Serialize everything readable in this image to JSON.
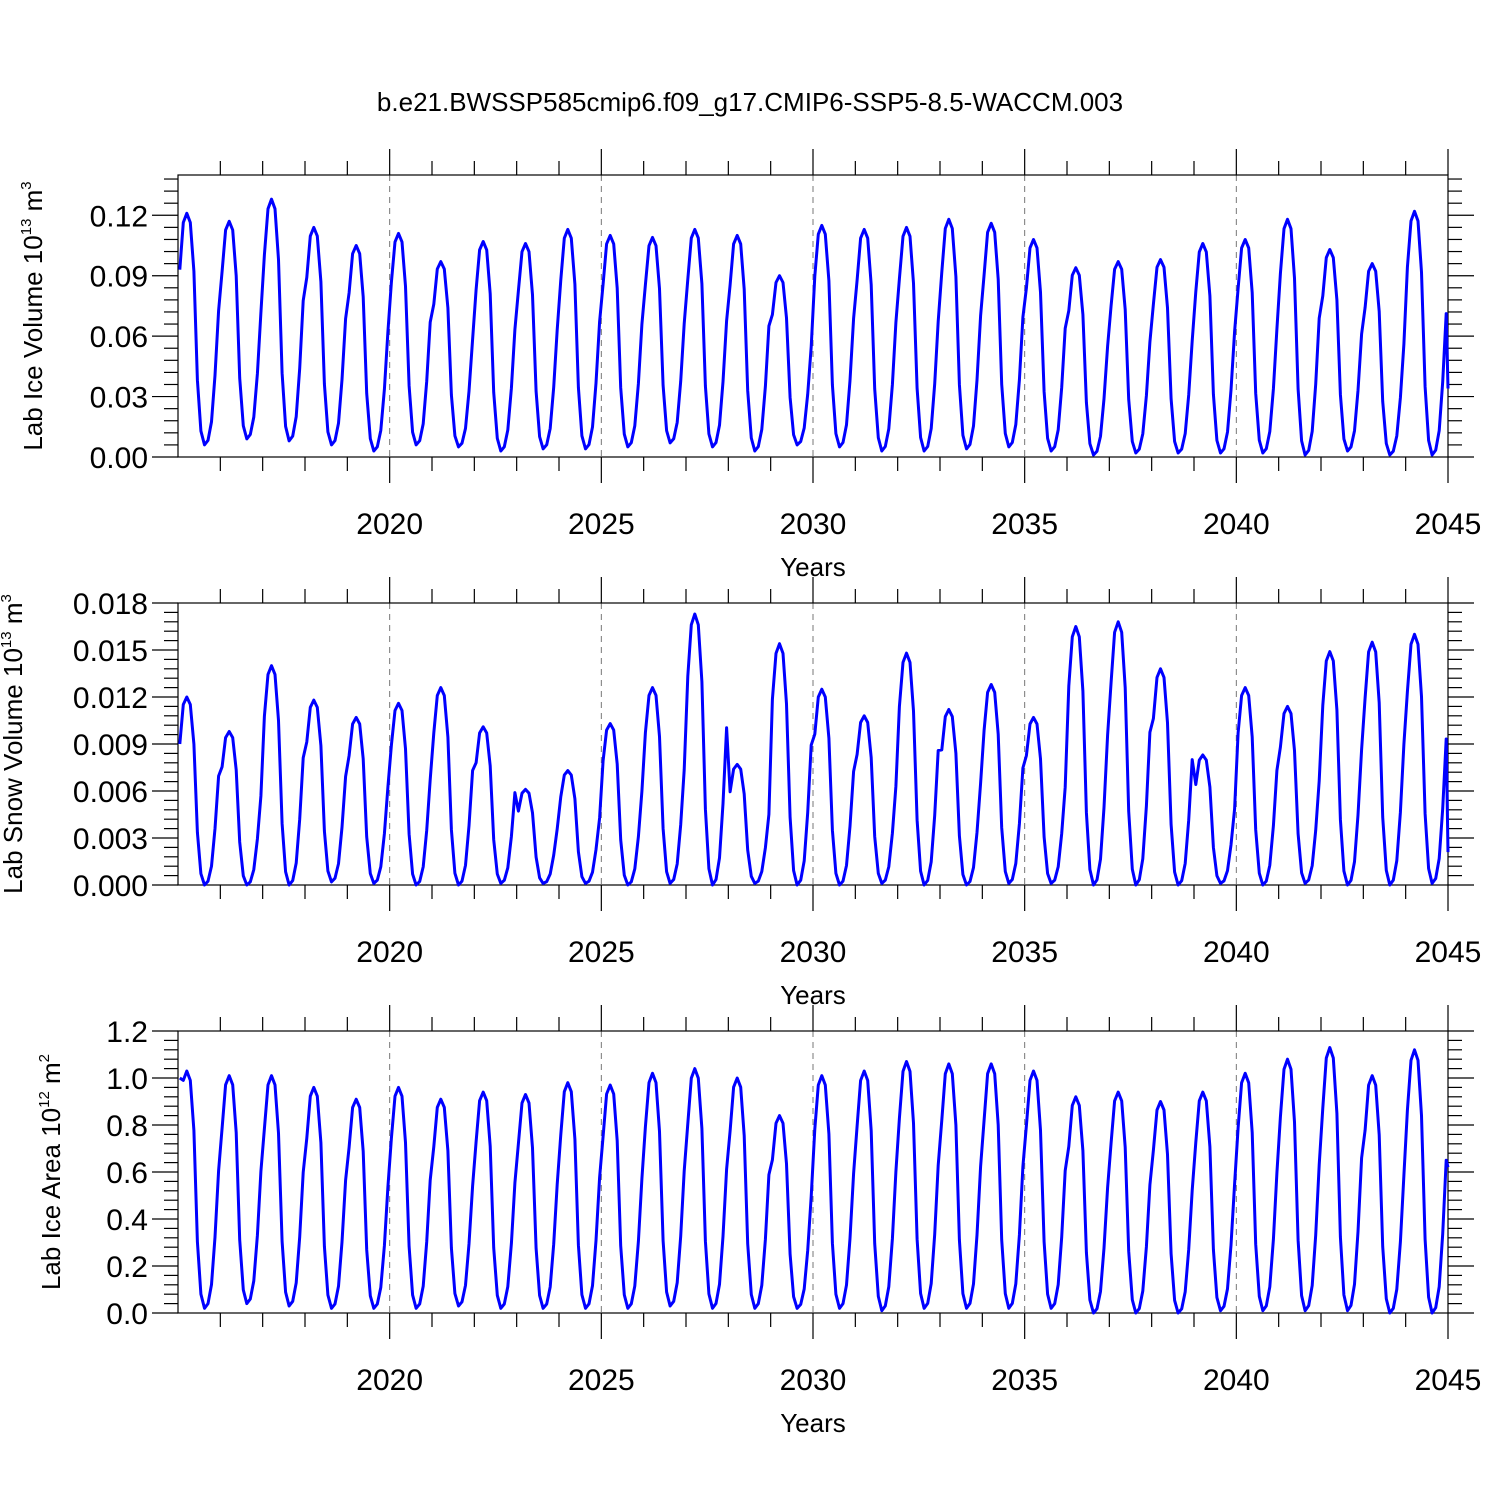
{
  "page_title": "b.e21.BWSSP585cmip6.f09_g17.CMIP6-SSP5-8.5-WACCM.003",
  "colors": {
    "series": "#0000ff",
    "grid": "#777777",
    "axes": "#000000"
  },
  "chart_data": [
    {
      "type": "line",
      "name": "lab-ice-volume",
      "title": "b.e21.BWSSP585cmip6.f09_g17.CMIP6-SSP5-8.5-WACCM.003",
      "xlabel": "Years",
      "ylabel": "Lab Ice Volume 10",
      "ylabel_exponent": "13",
      "ylabel_unit": " m",
      "ylabel_unit_exponent": "3",
      "xlim": [
        2015,
        2045
      ],
      "ylim": [
        0,
        0.14
      ],
      "yticks": [
        "0.00",
        "0.03",
        "0.06",
        "0.09",
        "0.12"
      ],
      "xticks": [
        "2020",
        "2025",
        "2030",
        "2035",
        "2040",
        "2045"
      ],
      "grid": "vertical dashed at 2020, 2025, 2030, 2035, 2040",
      "series": [
        {
          "seasonal_pattern": "monthly values, yearly peak in spring, minimum in late summer",
          "years": [
            2015,
            2016,
            2017,
            2018,
            2019,
            2020,
            2021,
            2022,
            2023,
            2024,
            2025,
            2026,
            2027,
            2028,
            2029,
            2030,
            2031,
            2032,
            2033,
            2034,
            2035,
            2036,
            2037,
            2038,
            2039,
            2040,
            2041,
            2042,
            2043,
            2044
          ],
          "annual_max": [
            0.121,
            0.117,
            0.128,
            0.114,
            0.105,
            0.111,
            0.097,
            0.107,
            0.106,
            0.113,
            0.11,
            0.109,
            0.113,
            0.11,
            0.09,
            0.115,
            0.113,
            0.114,
            0.118,
            0.116,
            0.108,
            0.094,
            0.097,
            0.098,
            0.106,
            0.108,
            0.118,
            0.103,
            0.096,
            0.122
          ],
          "annual_min": [
            0.006,
            0.009,
            0.008,
            0.006,
            0.003,
            0.006,
            0.005,
            0.003,
            0.004,
            0.004,
            0.005,
            0.007,
            0.005,
            0.003,
            0.006,
            0.005,
            0.003,
            0.003,
            0.004,
            0.005,
            0.003,
            0.001,
            0.002,
            0.002,
            0.002,
            0.002,
            0.001,
            0.003,
            0.001,
            0.001
          ],
          "start_value": 0.093,
          "end_value": 0.034
        }
      ]
    },
    {
      "type": "line",
      "name": "lab-snow-volume",
      "xlabel": "Years",
      "ylabel": "Lab Snow Volume 10",
      "ylabel_exponent": "13",
      "ylabel_unit": " m",
      "ylabel_unit_exponent": "3",
      "xlim": [
        2015,
        2045
      ],
      "ylim": [
        0,
        0.018
      ],
      "yticks": [
        "0.000",
        "0.003",
        "0.006",
        "0.009",
        "0.012",
        "0.015",
        "0.018"
      ],
      "xticks": [
        "2020",
        "2025",
        "2030",
        "2035",
        "2040",
        "2045"
      ],
      "grid": "vertical dashed at 2020, 2025, 2030, 2035, 2040",
      "series": [
        {
          "seasonal_pattern": "monthly values, yearly peak in spring, near zero in summer",
          "years": [
            2015,
            2016,
            2017,
            2018,
            2019,
            2020,
            2021,
            2022,
            2023,
            2024,
            2025,
            2026,
            2027,
            2028,
            2029,
            2030,
            2031,
            2032,
            2033,
            2034,
            2035,
            2036,
            2037,
            2038,
            2039,
            2040,
            2041,
            2042,
            2043,
            2044
          ],
          "annual_max": [
            0.012,
            0.0098,
            0.014,
            0.0118,
            0.0107,
            0.0116,
            0.0126,
            0.0101,
            0.0061,
            0.0073,
            0.0103,
            0.0126,
            0.0173,
            0.0077,
            0.0154,
            0.0125,
            0.0108,
            0.0148,
            0.0112,
            0.0128,
            0.0107,
            0.0165,
            0.0168,
            0.0138,
            0.0083,
            0.0126,
            0.0114,
            0.0149,
            0.0155,
            0.016
          ],
          "annual_min": [
            0.0,
            0.0,
            0.0,
            0.0002,
            0.0001,
            0.0,
            0.0,
            0.0001,
            0.0001,
            0.0001,
            0.0,
            0.0001,
            0.0,
            0.0001,
            0.0,
            0.0,
            0.0001,
            0.0,
            0.0,
            0.0001,
            0.0001,
            0.0,
            0.0,
            0.0,
            0.0001,
            0.0,
            0.0001,
            0.0,
            0.0,
            0.0001
          ],
          "start_value": 0.009,
          "end_value": 0.0021
        }
      ]
    },
    {
      "type": "line",
      "name": "lab-ice-area",
      "xlabel": "Years",
      "ylabel": "Lab Ice Area 10",
      "ylabel_exponent": "12",
      "ylabel_unit": " m",
      "ylabel_unit_exponent": "2",
      "xlim": [
        2015,
        2045
      ],
      "ylim": [
        0,
        1.2
      ],
      "yticks": [
        "0.0",
        "0.2",
        "0.4",
        "0.6",
        "0.8",
        "1.0",
        "1.2"
      ],
      "xticks": [
        "2020",
        "2025",
        "2030",
        "2035",
        "2040",
        "2045"
      ],
      "grid": "vertical dashed at 2020, 2025, 2030, 2035, 2040",
      "series": [
        {
          "seasonal_pattern": "monthly values, yearly peak in late winter/spring, minimum in late summer",
          "years": [
            2015,
            2016,
            2017,
            2018,
            2019,
            2020,
            2021,
            2022,
            2023,
            2024,
            2025,
            2026,
            2027,
            2028,
            2029,
            2030,
            2031,
            2032,
            2033,
            2034,
            2035,
            2036,
            2037,
            2038,
            2039,
            2040,
            2041,
            2042,
            2043,
            2044
          ],
          "annual_max": [
            1.03,
            1.01,
            1.01,
            0.96,
            0.91,
            0.96,
            0.91,
            0.94,
            0.93,
            0.98,
            0.97,
            1.02,
            1.04,
            1.0,
            0.84,
            1.01,
            1.03,
            1.07,
            1.06,
            1.06,
            1.03,
            0.92,
            0.94,
            0.9,
            0.94,
            1.02,
            1.08,
            1.13,
            1.01,
            1.12
          ],
          "annual_min": [
            0.02,
            0.04,
            0.03,
            0.02,
            0.02,
            0.02,
            0.03,
            0.02,
            0.02,
            0.02,
            0.02,
            0.03,
            0.02,
            0.02,
            0.02,
            0.02,
            0.01,
            0.02,
            0.02,
            0.02,
            0.02,
            0.0,
            0.0,
            0.0,
            0.01,
            0.01,
            0.01,
            0.01,
            0.0,
            0.0
          ],
          "start_value": 1.0,
          "end_value": 0.62
        }
      ]
    }
  ]
}
